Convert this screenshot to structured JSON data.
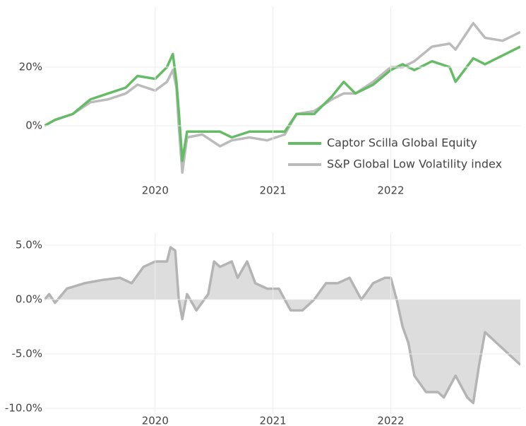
{
  "chart_data": [
    {
      "type": "line",
      "x": [
        2019.06,
        2019.15,
        2019.3,
        2019.45,
        2019.6,
        2019.75,
        2019.85,
        2020.0,
        2020.1,
        2020.15,
        2020.18,
        2020.2,
        2020.23,
        2020.27,
        2020.4,
        2020.55,
        2020.65,
        2020.8,
        2020.95,
        2021.1,
        2021.2,
        2021.35,
        2021.5,
        2021.6,
        2021.7,
        2021.85,
        2022.0,
        2022.1,
        2022.2,
        2022.35,
        2022.5,
        2022.55,
        2022.7,
        2022.8,
        2022.95,
        2023.1
      ],
      "series": [
        {
          "name": "Captor Scilla Global Equity",
          "color": "#66bb66",
          "values": [
            0,
            2,
            4,
            9,
            11,
            13,
            17,
            16,
            20,
            24.5,
            15,
            5,
            -12,
            -2,
            -2,
            -2,
            -4,
            -2,
            -2,
            -2,
            4,
            4,
            10,
            15,
            11,
            14,
            19,
            21,
            19,
            22,
            20,
            15,
            23,
            21,
            24,
            27
          ]
        },
        {
          "name": "S&P Global Low Volatility index",
          "color": "#bbbbbb",
          "values": [
            0,
            2,
            4,
            8,
            9,
            11,
            14,
            12,
            15,
            19,
            13,
            0,
            -16,
            -4,
            -3,
            -7,
            -5,
            -4,
            -5,
            -3,
            4,
            5,
            9,
            11,
            11,
            15,
            20,
            20,
            22,
            27,
            28,
            26,
            35,
            30,
            29,
            32
          ]
        }
      ],
      "xlim": [
        2019.06,
        2023.1
      ],
      "xticks": [
        2020,
        2021,
        2022
      ],
      "ylim": [
        -19.3,
        40.5
      ],
      "yticks": [
        {
          "value": 0,
          "label": "0%"
        },
        {
          "value": 20,
          "label": "20%"
        }
      ],
      "grid": true,
      "legend": "lower right"
    },
    {
      "type": "area",
      "x": [
        2019.06,
        2019.1,
        2019.15,
        2019.25,
        2019.4,
        2019.55,
        2019.7,
        2019.8,
        2019.9,
        2020.0,
        2020.1,
        2020.13,
        2020.17,
        2020.2,
        2020.23,
        2020.27,
        2020.35,
        2020.45,
        2020.5,
        2020.55,
        2020.65,
        2020.7,
        2020.78,
        2020.85,
        2020.95,
        2021.05,
        2021.15,
        2021.25,
        2021.35,
        2021.45,
        2021.55,
        2021.65,
        2021.75,
        2021.85,
        2021.95,
        2022.0,
        2022.05,
        2022.1,
        2022.15,
        2022.2,
        2022.3,
        2022.4,
        2022.45,
        2022.55,
        2022.65,
        2022.7,
        2022.75,
        2022.8,
        2022.9,
        2023.0,
        2023.1
      ],
      "values": [
        0,
        0.5,
        -0.3,
        1,
        1.5,
        1.8,
        2,
        1.5,
        3,
        3.5,
        3.5,
        4.8,
        4.5,
        0,
        -1.8,
        0.5,
        -1,
        0.5,
        3.5,
        3,
        3.5,
        2,
        3.5,
        1.5,
        1,
        1,
        -1,
        -1,
        0,
        1.5,
        1.5,
        2,
        0,
        1.5,
        2,
        2,
        0,
        -2.5,
        -4,
        -7,
        -8.5,
        -8.5,
        -9,
        -7,
        -9,
        -9.5,
        -6,
        -3,
        -4,
        -5,
        -6
      ],
      "color": "#b4b4b4",
      "fill": "#dddddd",
      "xlim": [
        2019.06,
        2023.1
      ],
      "xticks": [
        2020,
        2021,
        2022
      ],
      "ylim": [
        -10.45,
        6.1
      ],
      "yticks": [
        {
          "value": -10,
          "label": "-10.0%"
        },
        {
          "value": -5,
          "label": "-5.0%"
        },
        {
          "value": 0,
          "label": "0.0%"
        },
        {
          "value": 5,
          "label": "5.0%"
        }
      ],
      "grid": true
    }
  ]
}
